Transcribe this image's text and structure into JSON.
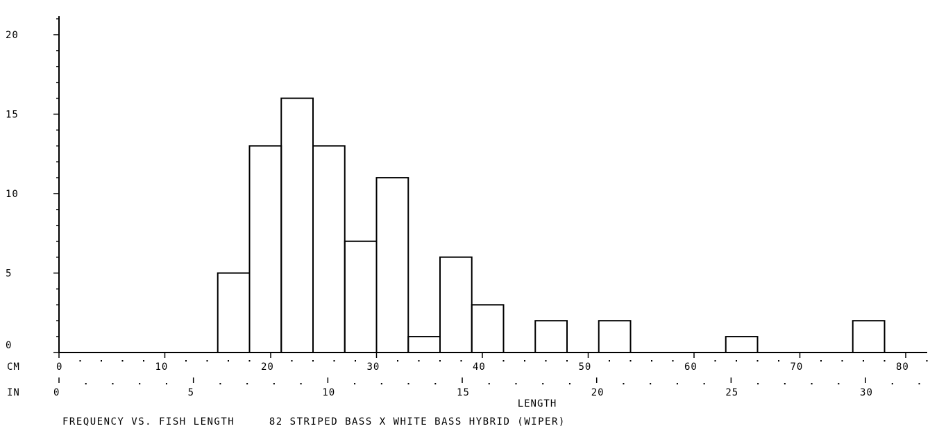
{
  "chart_data": {
    "type": "bar",
    "title": "FREQUENCY VS. FISH LENGTH     82 STRIPED BASS X WHITE BASS HYBRID (WIPER)",
    "xlabel": "LENGTH",
    "ylabel": "",
    "x_unit_cm": "CM",
    "x_unit_in": "IN",
    "ylim": [
      0,
      21
    ],
    "y_ticks": [
      "0",
      "5",
      "10",
      "15",
      "20"
    ],
    "cm_ticks": [
      "0",
      "10",
      "20",
      "30",
      "40",
      "50",
      "60",
      "70",
      "80"
    ],
    "in_ticks": [
      "0",
      "5",
      "10",
      "15",
      "20",
      "25",
      "30"
    ],
    "xlim_cm": [
      0,
      82
    ],
    "bin_width_cm": 3,
    "bins_start_cm": [
      15,
      18,
      21,
      24,
      27,
      30,
      33,
      36,
      39,
      45,
      51,
      63,
      75
    ],
    "values": [
      5,
      13,
      16,
      13,
      7,
      11,
      1,
      6,
      3,
      2,
      2,
      1,
      2
    ],
    "grid": false,
    "colors": {
      "line": "#000000",
      "background": "#ffffff"
    }
  }
}
